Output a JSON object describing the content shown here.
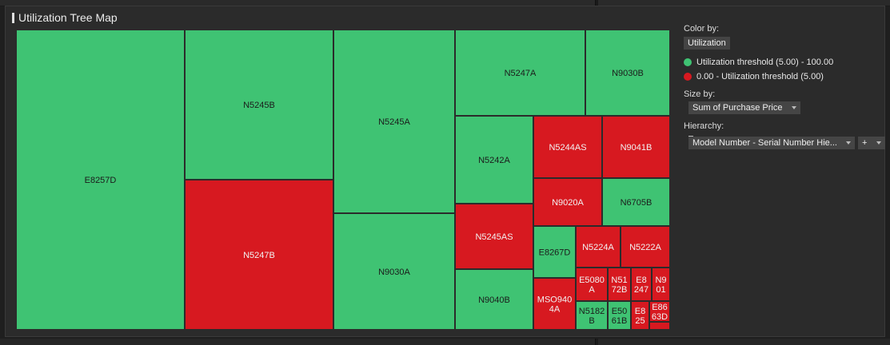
{
  "panel": {
    "title": "Utilization Tree Map"
  },
  "chart_data": {
    "type": "treemap",
    "title": "Utilization Tree Map",
    "color_by": "Utilization",
    "size_by": "Sum of Purchase Price",
    "hierarchy": "Model Number - Serial Number Hie...",
    "legend": [
      {
        "label": "Utilization threshold (5.00) - 100.00",
        "color": "#3fc373"
      },
      {
        "label": "0.00 - Utilization threshold (5.00)",
        "color": "#d71920"
      }
    ],
    "cells": [
      {
        "label": "E8257D",
        "status": "above"
      },
      {
        "label": "N5245B",
        "status": "above"
      },
      {
        "label": "N5247B",
        "status": "below"
      },
      {
        "label": "N5245A",
        "status": "above"
      },
      {
        "label": "N9030A",
        "status": "above"
      },
      {
        "label": "N5247A",
        "status": "above"
      },
      {
        "label": "N9030B",
        "status": "above"
      },
      {
        "label": "N5242A",
        "status": "above"
      },
      {
        "label": "N5244AS",
        "status": "below"
      },
      {
        "label": "N9041B",
        "status": "below"
      },
      {
        "label": "N9020A",
        "status": "below"
      },
      {
        "label": "N6705B",
        "status": "above"
      },
      {
        "label": "N5245AS",
        "status": "below"
      },
      {
        "label": "N9040B",
        "status": "above"
      },
      {
        "label": "E8267D",
        "status": "above"
      },
      {
        "label": "N5224A",
        "status": "below"
      },
      {
        "label": "N5222A",
        "status": "below"
      },
      {
        "label": "MSO9404A",
        "status": "below",
        "lines": [
          "MSO940",
          "4A"
        ]
      },
      {
        "label": "E5080A",
        "status": "below",
        "lines": [
          "E5080",
          "A"
        ]
      },
      {
        "label": "N5172B",
        "status": "below",
        "lines": [
          "N51",
          "72B"
        ]
      },
      {
        "label": "E8247",
        "status": "below",
        "lines": [
          "E8",
          "247"
        ]
      },
      {
        "label": "N901",
        "status": "below",
        "lines": [
          "N9",
          "01"
        ]
      },
      {
        "label": "N5182B",
        "status": "above",
        "lines": [
          "N5182",
          "B"
        ]
      },
      {
        "label": "E5061B",
        "status": "above",
        "lines": [
          "E50",
          "61B"
        ]
      },
      {
        "label": "E825",
        "status": "below",
        "lines": [
          "E8",
          "25"
        ]
      },
      {
        "label": "E8663D",
        "status": "below",
        "lines": [
          "E86",
          "63D"
        ]
      },
      {
        "label": "",
        "status": "below"
      }
    ]
  },
  "controls": {
    "color_by_label": "Color by:",
    "color_by_value": "Utilization",
    "size_by_label": "Size by:",
    "size_by_value": "Sum of Purchase Price",
    "hierarchy_label": "Hierarchy:",
    "hierarchy_value": "Model Number - Serial Number Hie...",
    "add_label": "+"
  },
  "colors": {
    "above": "#3fc373",
    "below": "#d71920",
    "text_above": "#1b1b1b",
    "text_below": "#f2f2f2"
  }
}
